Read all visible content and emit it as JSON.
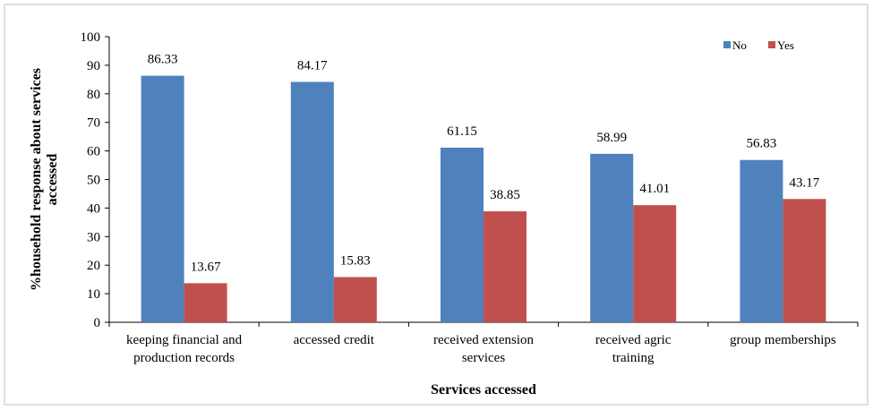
{
  "chart_data": {
    "type": "bar",
    "categories": [
      "keeping financial and production records",
      "accessed credit",
      "received extension services",
      "received agric training",
      "group memberships"
    ],
    "series": [
      {
        "name": "No",
        "color": "#4f81bd",
        "values": [
          86.33,
          84.17,
          61.15,
          58.99,
          56.83
        ]
      },
      {
        "name": "Yes",
        "color": "#c0504d",
        "values": [
          13.67,
          15.83,
          38.85,
          41.01,
          43.17
        ]
      }
    ],
    "xlabel": "Services accessed",
    "ylabel": "%household response about services accessed",
    "ylim": [
      0,
      100
    ],
    "yticks": [
      0,
      10,
      20,
      30,
      40,
      50,
      60,
      70,
      80,
      90,
      100
    ],
    "grid": false,
    "legend": "upper right"
  }
}
